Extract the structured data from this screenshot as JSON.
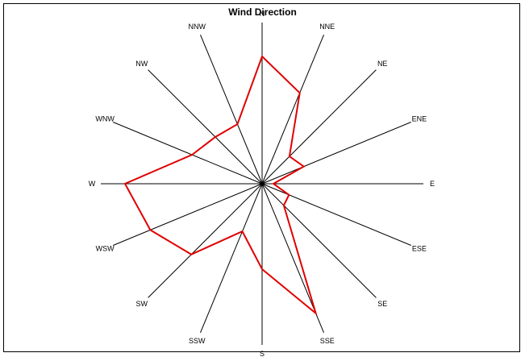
{
  "chart_data": {
    "type": "radar",
    "title": "Wind Direction",
    "directions": [
      "N",
      "NNE",
      "NE",
      "ENE",
      "E",
      "ESE",
      "SE",
      "SSE",
      "S",
      "SSW",
      "SW",
      "WSW",
      "W",
      "WNW",
      "NW",
      "NNW"
    ],
    "values": [
      0.79,
      0.61,
      0.24,
      0.28,
      0.07,
      0.18,
      0.19,
      0.87,
      0.53,
      0.32,
      0.62,
      0.75,
      0.85,
      0.47,
      0.41,
      0.4
    ],
    "radius_max": 1.0,
    "grid": true,
    "colors": {
      "series": "#e00000",
      "axes": "#000000"
    }
  }
}
